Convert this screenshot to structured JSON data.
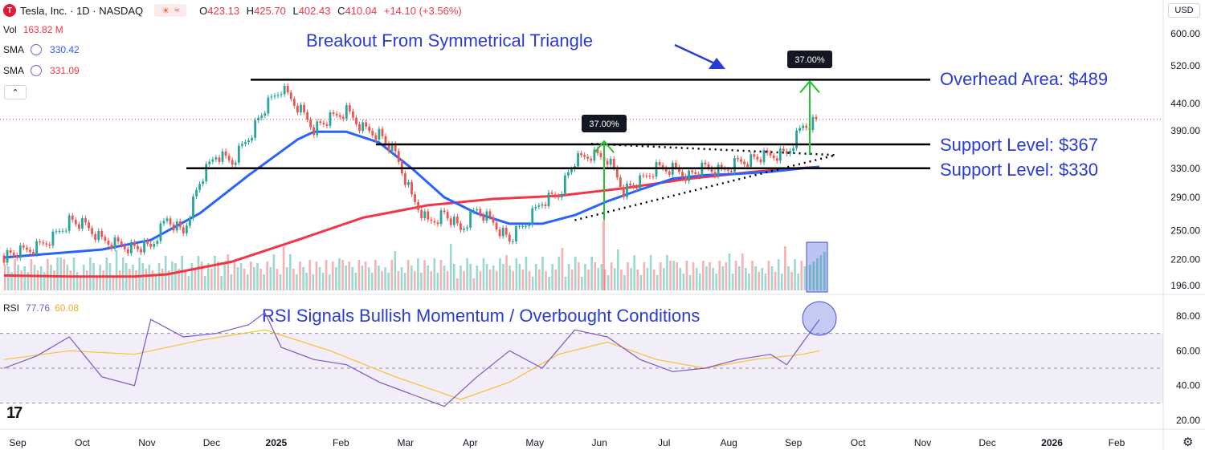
{
  "header": {
    "logo_letter": "T",
    "symbol": "Tesla, Inc. · 1D · NASDAQ",
    "ohlc": [
      {
        "k": "O",
        "v": "423.13"
      },
      {
        "k": "H",
        "v": "425.70"
      },
      {
        "k": "L",
        "v": "402.43"
      },
      {
        "k": "C",
        "v": "410.04"
      },
      {
        "k": "",
        "v": "+14.10 (+3.56%)"
      }
    ]
  },
  "indicators": {
    "vol": {
      "label": "Vol",
      "value": "163.82 M",
      "color": "#f23645"
    },
    "sma1": {
      "label": "SMA",
      "value": "330.42",
      "color": "#2962ff"
    },
    "sma2": {
      "label": "SMA",
      "value": "331.09",
      "color": "#f23645"
    },
    "rsi": {
      "label": "RSI",
      "value": "77.76",
      "ma_value": "60.08",
      "color": "#7e57c2",
      "ma_color": "#fbc02d"
    }
  },
  "currency": "USD",
  "annotations": {
    "title": "Breakout From Symmetrical Triangle",
    "overhead": "Overhead Area: $489",
    "support1": "Support Level: $367",
    "support2": "Support Level: $330",
    "rsi_note": "RSI Signals Bullish Momentum / Overbought Conditions",
    "pct1": "37.00%",
    "pct2": "37.00%"
  },
  "chart_data": {
    "type": "candlestick",
    "price_axis": {
      "ticks": [
        "600.00",
        "520.00",
        "440.00",
        "390.00",
        "330.00",
        "290.00",
        "250.00",
        "220.00",
        "196.00"
      ],
      "ticks_num": [
        600,
        520,
        440,
        390,
        330,
        290,
        250,
        220,
        196
      ],
      "scale": "log"
    },
    "rsi_axis": {
      "ticks": [
        "80.00",
        "60.00",
        "40.00",
        "20.00"
      ],
      "ticks_num": [
        80,
        60,
        40,
        20
      ],
      "bands": [
        30,
        50,
        70
      ]
    },
    "x_labels": [
      "Sep",
      "Oct",
      "Nov",
      "Dec",
      "2025",
      "Feb",
      "Mar",
      "Apr",
      "May",
      "Jun",
      "Jul",
      "Aug",
      "Sep",
      "Oct",
      "Nov",
      "Dec",
      "2026",
      "Feb"
    ],
    "levels": {
      "overhead": 489,
      "support_high": 367,
      "support_low": 330,
      "current": 410.04
    },
    "price_path": [
      [
        0,
        224
      ],
      [
        1,
        227
      ],
      [
        2,
        232
      ],
      [
        3,
        243
      ],
      [
        4,
        262
      ],
      [
        5,
        255
      ],
      [
        6,
        240
      ],
      [
        7,
        236
      ],
      [
        8,
        232
      ],
      [
        9,
        232
      ],
      [
        10,
        264
      ],
      [
        11,
        248
      ],
      [
        12,
        310
      ],
      [
        13,
        350
      ],
      [
        14,
        340
      ],
      [
        15,
        380
      ],
      [
        16,
        430
      ],
      [
        17,
        470
      ],
      [
        18,
        435
      ],
      [
        19,
        395
      ],
      [
        20,
        410
      ],
      [
        21,
        425
      ],
      [
        22,
        395
      ],
      [
        23,
        385
      ],
      [
        24,
        350
      ],
      [
        25,
        290
      ],
      [
        26,
        260
      ],
      [
        27,
        270
      ],
      [
        28,
        250
      ],
      [
        29,
        275
      ],
      [
        30,
        260
      ],
      [
        31,
        240
      ],
      [
        32,
        258
      ],
      [
        33,
        285
      ],
      [
        34,
        295
      ],
      [
        35,
        340
      ],
      [
        36,
        350
      ],
      [
        37,
        345
      ],
      [
        38,
        300
      ],
      [
        39,
        310
      ],
      [
        40,
        330
      ],
      [
        41,
        330
      ],
      [
        42,
        320
      ],
      [
        43,
        330
      ],
      [
        44,
        325
      ],
      [
        45,
        340
      ],
      [
        46,
        345
      ],
      [
        47,
        348
      ],
      [
        48,
        352
      ],
      [
        49,
        400
      ],
      [
        50,
        410
      ]
    ],
    "sma_blue_path": [
      [
        0,
        222
      ],
      [
        3,
        226
      ],
      [
        6,
        230
      ],
      [
        9,
        240
      ],
      [
        12,
        270
      ],
      [
        15,
        320
      ],
      [
        18,
        375
      ],
      [
        19,
        388
      ],
      [
        21,
        388
      ],
      [
        23,
        370
      ],
      [
        25,
        330
      ],
      [
        27,
        290
      ],
      [
        29,
        270
      ],
      [
        31,
        258
      ],
      [
        33,
        258
      ],
      [
        35,
        268
      ],
      [
        37,
        285
      ],
      [
        39,
        300
      ],
      [
        41,
        315
      ],
      [
        43,
        320
      ],
      [
        45,
        322
      ],
      [
        47,
        325
      ],
      [
        49,
        330
      ],
      [
        50,
        332
      ]
    ],
    "sma_red_path": [
      [
        0,
        205
      ],
      [
        4,
        204
      ],
      [
        8,
        204
      ],
      [
        10,
        206
      ],
      [
        14,
        218
      ],
      [
        18,
        240
      ],
      [
        22,
        265
      ],
      [
        26,
        280
      ],
      [
        30,
        288
      ],
      [
        34,
        292
      ],
      [
        38,
        302
      ],
      [
        42,
        315
      ],
      [
        46,
        325
      ],
      [
        48,
        329
      ],
      [
        50,
        332
      ]
    ],
    "triangle_upper": [
      [
        36,
        368
      ],
      [
        51,
        350
      ]
    ],
    "triangle_lower": [
      [
        35,
        262
      ],
      [
        51,
        350
      ]
    ],
    "volume": {
      "latest": "163.82 M"
    },
    "rsi_path": [
      [
        0,
        50
      ],
      [
        2,
        57
      ],
      [
        4,
        68
      ],
      [
        6,
        45
      ],
      [
        8,
        40
      ],
      [
        9,
        78
      ],
      [
        11,
        68
      ],
      [
        13,
        70
      ],
      [
        15,
        75
      ],
      [
        16,
        82
      ],
      [
        17,
        62
      ],
      [
        19,
        55
      ],
      [
        21,
        52
      ],
      [
        23,
        42
      ],
      [
        25,
        35
      ],
      [
        27,
        28
      ],
      [
        29,
        45
      ],
      [
        31,
        60
      ],
      [
        33,
        50
      ],
      [
        35,
        72
      ],
      [
        37,
        68
      ],
      [
        39,
        55
      ],
      [
        41,
        48
      ],
      [
        43,
        50
      ],
      [
        45,
        55
      ],
      [
        47,
        58
      ],
      [
        48,
        52
      ],
      [
        49,
        65
      ],
      [
        50,
        78
      ]
    ],
    "rsi_ma_path": [
      [
        0,
        55
      ],
      [
        4,
        60
      ],
      [
        8,
        58
      ],
      [
        12,
        66
      ],
      [
        16,
        72
      ],
      [
        20,
        60
      ],
      [
        24,
        45
      ],
      [
        28,
        32
      ],
      [
        31,
        42
      ],
      [
        34,
        58
      ],
      [
        37,
        65
      ],
      [
        40,
        55
      ],
      [
        43,
        50
      ],
      [
        46,
        55
      ],
      [
        49,
        58
      ],
      [
        50,
        60
      ]
    ]
  }
}
